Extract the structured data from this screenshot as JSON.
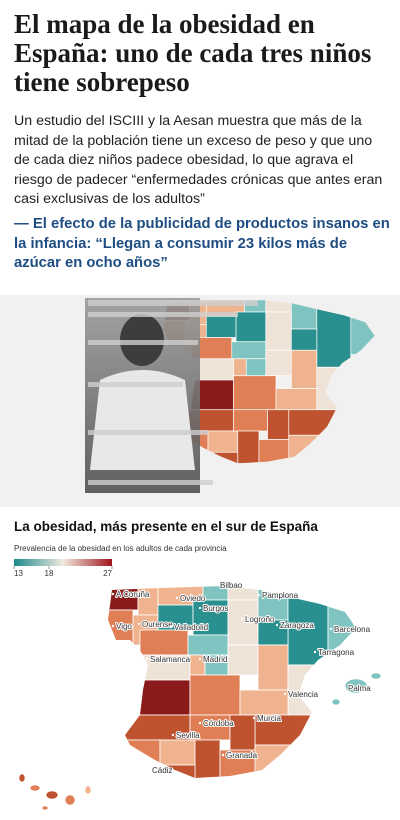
{
  "header": {
    "title": "El mapa de la obesidad en España: uno de cada tres niños tiene sobrepeso",
    "lead": "Un estudio del ISCIII y la Aesan muestra que más de la mitad de la población tiene un exceso de peso y que uno de cada diez niños padece obesidad, lo que agrava el riesgo de padecer “enfermedades crónicas que antes eran casi exclusivas de los adultos”"
  },
  "related": "— El efecto de la publicidad de productos insanos en la infancia: “Llegan a consumir 23 kilos más de azúcar en ocho años”",
  "map": {
    "title": "La obesidad, más presente en el sur de España",
    "subtitle": "Prevalencia de la obesidad en los adultos de cada provincia",
    "legend_ticks": [
      13,
      18,
      27
    ],
    "legend_colors": [
      "#1b8a8a",
      "#f1e9df",
      "#a0151c"
    ],
    "cities": [
      "A Coruña",
      "Oviedo",
      "Bilbao",
      "Pamplona",
      "Vigo",
      "Ourense",
      "Burgos",
      "Valladolid",
      "Logroño",
      "Zaragoza",
      "Barcelona",
      "Tarragona",
      "Salamanca",
      "Madrid",
      "Valencia",
      "Palma",
      "Córdoba",
      "Murcia",
      "Sevilla",
      "Granada",
      "Cádiz"
    ]
  }
}
